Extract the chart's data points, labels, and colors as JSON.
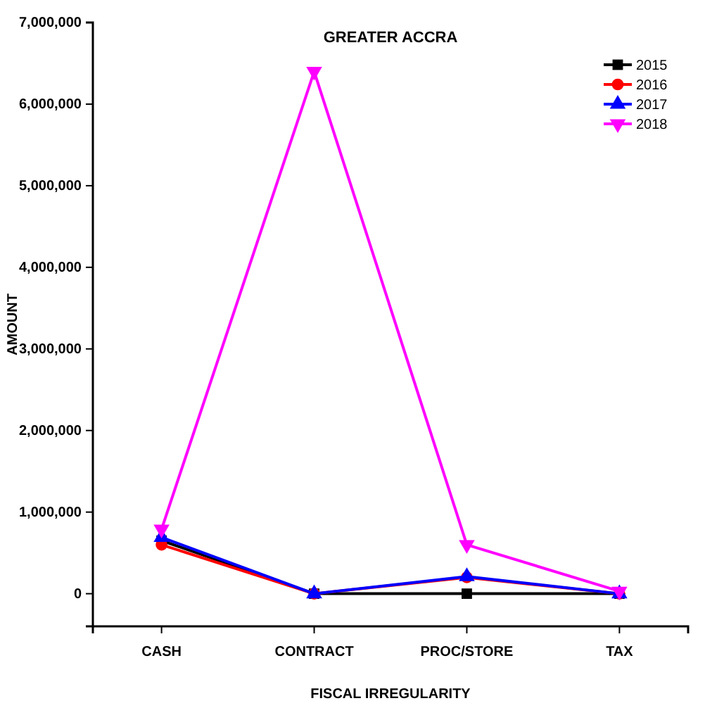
{
  "chart_data": {
    "type": "line",
    "title": "GREATER ACCRA",
    "xlabel": "FISCAL IRREGULARITY",
    "ylabel": "AMOUNT",
    "categories": [
      "CASH",
      "CONTRACT",
      "PROC/STORE",
      "TAX"
    ],
    "series": [
      {
        "name": "2015",
        "color": "#000000",
        "marker": "square",
        "values": [
          650000,
          0,
          0,
          0
        ]
      },
      {
        "name": "2016",
        "color": "#ff0000",
        "marker": "circle",
        "values": [
          600000,
          0,
          200000,
          0
        ]
      },
      {
        "name": "2017",
        "color": "#0000ff",
        "marker": "triangle",
        "values": [
          690000,
          0,
          210000,
          0
        ]
      },
      {
        "name": "2018",
        "color": "#ff00ff",
        "marker": "triangle-down",
        "values": [
          790000,
          6400000,
          600000,
          30000
        ]
      }
    ],
    "ylim": [
      -400000,
      7000000
    ],
    "yticks": [
      {
        "value": 0,
        "label": "0"
      },
      {
        "value": 1000000,
        "label": "1,000,000"
      },
      {
        "value": 2000000,
        "label": "2,000,000"
      },
      {
        "value": 3000000,
        "label": "3,000,000"
      },
      {
        "value": 4000000,
        "label": "4,000,000"
      },
      {
        "value": 5000000,
        "label": "5,000,000"
      },
      {
        "value": 6000000,
        "label": "6,000,000"
      },
      {
        "value": 7000000,
        "label": "7,000,000"
      }
    ],
    "grid": false,
    "legend": "top right",
    "line_style": "solid"
  }
}
